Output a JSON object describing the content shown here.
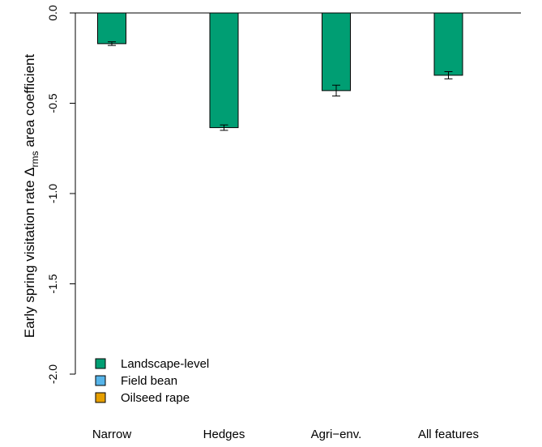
{
  "chart_data": {
    "type": "bar",
    "categories": [
      "Narrow",
      "Hedges",
      "Agri−env.",
      "All features"
    ],
    "series": [
      {
        "name": "Landscape-level",
        "color": "#009E73",
        "values": [
          -0.17,
          -0.635,
          -0.43,
          -0.345
        ],
        "err_low": [
          -0.18,
          -0.65,
          -0.46,
          -0.365
        ],
        "err_high": [
          -0.16,
          -0.62,
          -0.4,
          -0.325
        ]
      }
    ],
    "legend": {
      "placement": "bottom-left",
      "entries": [
        {
          "label": "Landscape-level",
          "color": "#009E73"
        },
        {
          "label": "Field bean",
          "color": "#56B4E9"
        },
        {
          "label": "Oilseed rape",
          "color": "#E69F00"
        }
      ]
    },
    "ylabel": {
      "pre": "Early spring visitation rate  Δ",
      "sub": "rms",
      "post": " area coefficient"
    },
    "xlabel": "",
    "ylim": [
      -2.0,
      0.0
    ],
    "yticks": [
      "0.0",
      "-0.5",
      "-1.0",
      "-1.5",
      "-2.0"
    ],
    "grid": false
  }
}
